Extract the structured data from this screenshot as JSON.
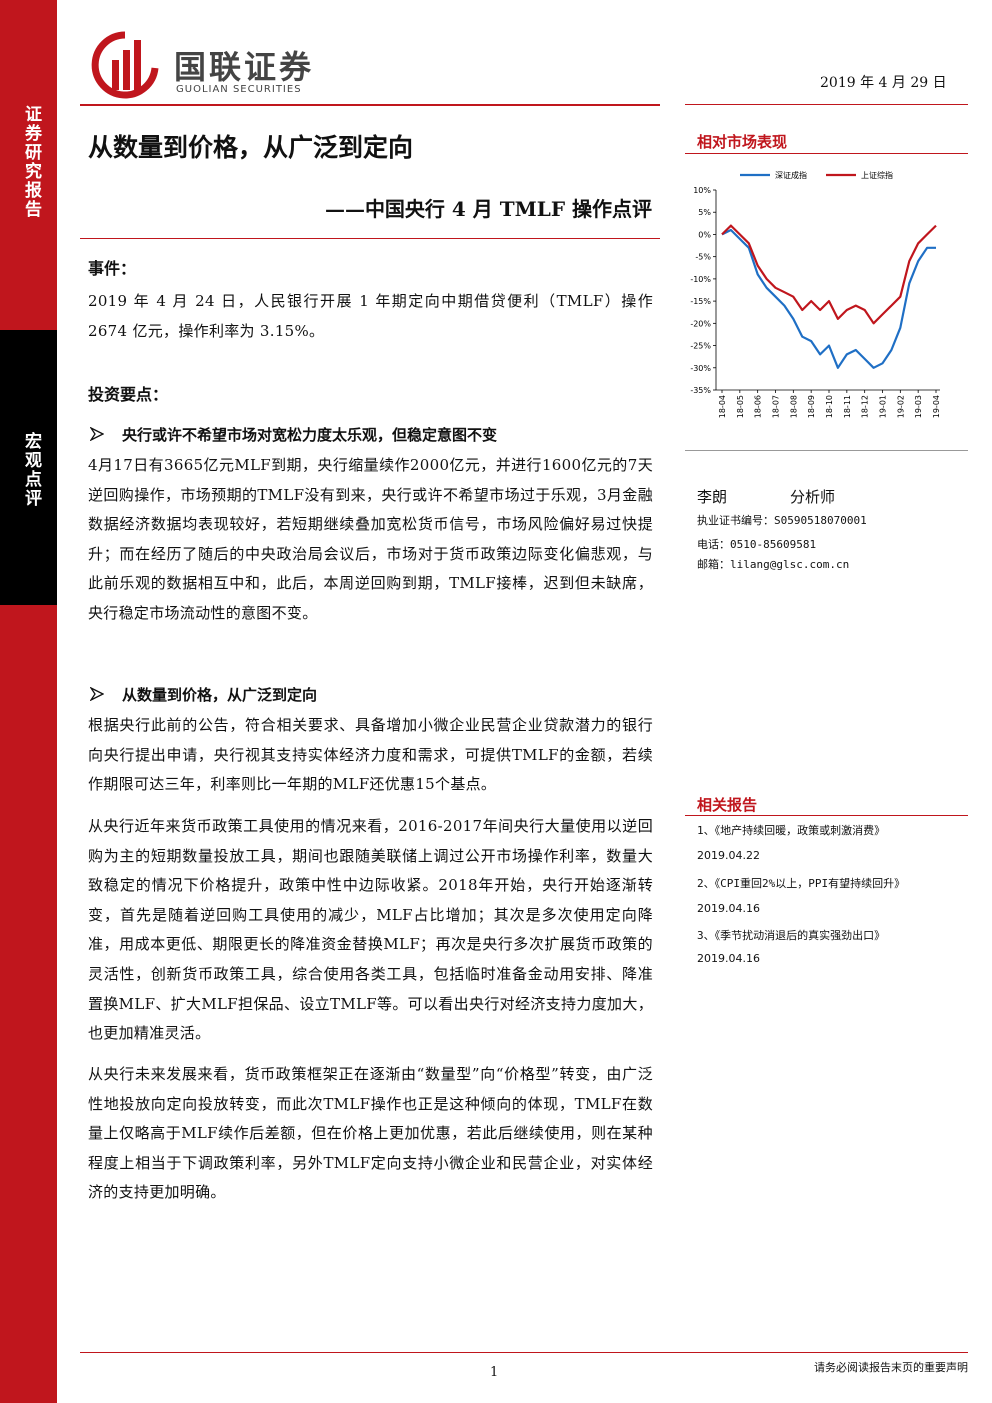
{
  "header": {
    "logo_cn": "国联证券",
    "logo_en": "GUOLIAN SECURITIES",
    "date": "2019 年 4 月 29 日"
  },
  "sidebar": {
    "top": "证券研究报告",
    "middle": "宏观点评"
  },
  "title": "从数量到价格，从广泛到定向",
  "subtitle": "——中国央行 4 月 TMLF 操作点评",
  "event": {
    "heading": "事件：",
    "text": "2019 年 4 月 24 日，人民银行开展 1 年期定向中期借贷便利（TMLF）操作 2674 亿元，操作利率为 3.15%。"
  },
  "key_points": {
    "heading": "投资要点：",
    "points": [
      {
        "heading": "央行或许不希望市场对宽松力度太乐观，但稳定意图不变",
        "paragraphs": [
          "4月17日有3665亿元MLF到期，央行缩量续作2000亿元，并进行1600亿元的7天逆回购操作，市场预期的TMLF没有到来，央行或许不希望市场过于乐观，3月金融数据经济数据均表现较好，若短期继续叠加宽松货币信号，市场风险偏好易过快提升；而在经历了随后的中央政治局会议后，市场对于货币政策边际变化偏悲观，与此前乐观的数据相互中和，此后，本周逆回购到期，TMLF接棒，迟到但未缺席，央行稳定市场流动性的意图不变。"
        ]
      },
      {
        "heading": "从数量到价格，从广泛到定向",
        "paragraphs": [
          "根据央行此前的公告，符合相关要求、具备增加小微企业民营企业贷款潜力的银行向央行提出申请，央行视其支持实体经济力度和需求，可提供TMLF的金额，若续作期限可达三年，利率则比一年期的MLF还优惠15个基点。",
          "从央行近年来货币政策工具使用的情况来看，2016-2017年间央行大量使用以逆回购为主的短期数量投放工具，期间也跟随美联储上调过公开市场操作利率，数量大致稳定的情况下价格提升，政策中性中边际收紧。2018年开始，央行开始逐渐转变，首先是随着逆回购工具使用的减少，MLF占比增加；其次是多次使用定向降准，用成本更低、期限更长的降准资金替换MLF；再次是央行多次扩展货币政策的灵活性，创新货币政策工具，综合使用各类工具，包括临时准备金动用安排、降准置换MLF、扩大MLF担保品、设立TMLF等。可以看出央行对经济支持力度加大，也更加精准灵活。",
          "从央行未来发展来看，货币政策框架正在逐渐由“数量型”向“价格型”转变，由广泛性地投放向定向投放转变，而此次TMLF操作也正是这种倾向的体现，TMLF在数量上仅略高于MLF续作后差额，但在价格上更加优惠，若此后继续使用，则在某种程度上相当于下调政策利率，另外TMLF定向支持小微企业和民营企业，对实体经济的支持更加明确。"
        ]
      }
    ]
  },
  "chart_data": {
    "type": "line",
    "title": "相对市场表现",
    "categories": [
      "18-04",
      null,
      "18-05",
      null,
      "18-06",
      null,
      "18-07",
      null,
      "18-08",
      null,
      "18-09",
      null,
      "18-10",
      null,
      "18-11",
      null,
      "18-12",
      null,
      "19-01",
      null,
      "19-02",
      null,
      "19-03",
      null,
      "19-04"
    ],
    "series": [
      {
        "name": "深证成指",
        "color": "#1f6fc5",
        "values": [
          0,
          1,
          -1,
          -3,
          -9,
          -12,
          -14,
          -16,
          -19,
          -23,
          -24,
          -27,
          -25,
          -30,
          -27,
          -26,
          -28,
          -30,
          -29,
          -26,
          -21,
          -11,
          -6,
          -3,
          -3
        ]
      },
      {
        "name": "上证综指",
        "color": "#c0161d",
        "values": [
          0,
          2,
          0,
          -2,
          -7,
          -10,
          -12,
          -13,
          -14,
          -17,
          -15,
          -17,
          -15,
          -19,
          -17,
          -16,
          -17,
          -20,
          -18,
          -16,
          -14,
          -6,
          -2,
          0,
          2
        ]
      }
    ],
    "ylim": [
      -35,
      10
    ],
    "yticks": [
      {
        "value": 10,
        "label": "10%"
      },
      {
        "value": 5,
        "label": "5%"
      },
      {
        "value": 0,
        "label": "0%"
      },
      {
        "value": -5,
        "label": "-5%"
      },
      {
        "value": -10,
        "label": "-10%"
      },
      {
        "value": -15,
        "label": "-15%"
      },
      {
        "value": -20,
        "label": "-20%"
      },
      {
        "value": -25,
        "label": "-25%"
      },
      {
        "value": -30,
        "label": "-30%"
      },
      {
        "value": -35,
        "label": "-35%"
      }
    ],
    "grid": false,
    "legend": "top"
  },
  "analyst": {
    "name": "李朗",
    "role": "分析师",
    "license": "执业证书编号：S0590518070001",
    "phone": "电话：0510-85609581",
    "email": "邮箱：lilang@glsc.com.cn"
  },
  "related": {
    "heading": "相关报告",
    "items": [
      {
        "title": "1、《地产持续回暖，政策或刺激消费》",
        "date": "2019.04.22"
      },
      {
        "title": "2、《CPI重回2%以上，PPI有望持续回升》",
        "date": "2019.04.16"
      },
      {
        "title": "3、《季节扰动消退后的真实强劲出口》",
        "date": "2019.04.16"
      }
    ]
  },
  "footer": {
    "page": "1",
    "disclaimer": "请务必阅读报告末页的重要声明"
  }
}
